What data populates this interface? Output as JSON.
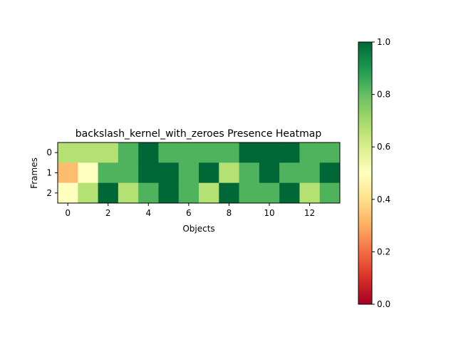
{
  "chart_data": {
    "type": "heatmap",
    "title": "backslash_kernel_with_zeroes Presence Heatmap",
    "xlabel": "Objects",
    "ylabel": "Frames",
    "colormap": "RdYlGn",
    "rows": [
      0,
      1,
      2
    ],
    "columns": [
      0,
      1,
      2,
      3,
      4,
      5,
      6,
      7,
      8,
      9,
      10,
      11,
      12,
      13
    ],
    "x_ticks": [
      0,
      2,
      4,
      6,
      8,
      10,
      12
    ],
    "y_ticks": [
      0,
      1,
      2
    ],
    "values": [
      [
        0.67,
        0.67,
        0.67,
        0.83,
        1.0,
        0.83,
        0.83,
        0.83,
        0.83,
        1.0,
        1.0,
        1.0,
        0.83,
        0.83
      ],
      [
        0.33,
        0.5,
        0.83,
        0.83,
        1.0,
        1.0,
        0.83,
        1.0,
        0.67,
        0.83,
        1.0,
        0.83,
        0.83,
        1.0
      ],
      [
        0.5,
        0.67,
        1.0,
        0.67,
        0.83,
        1.0,
        0.83,
        0.67,
        1.0,
        0.83,
        0.83,
        1.0,
        0.67,
        0.83
      ]
    ],
    "colorbar": {
      "vmin": 0.0,
      "vmax": 1.0,
      "ticks": [
        "0.0",
        "0.2",
        "0.4",
        "0.6",
        "0.8",
        "1.0"
      ]
    }
  }
}
